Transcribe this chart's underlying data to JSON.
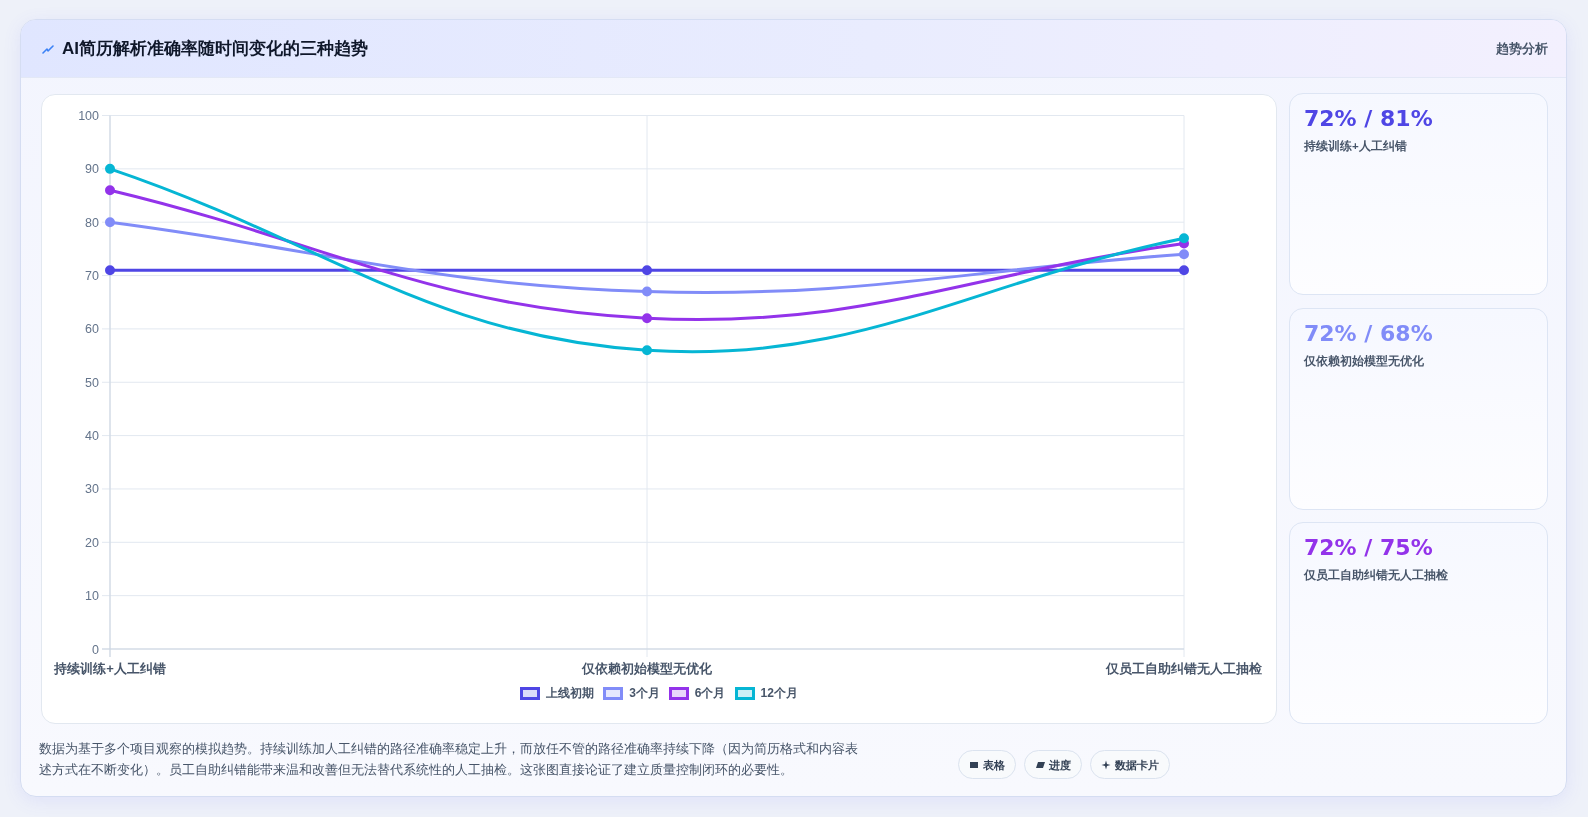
{
  "chart_data": [
    {
      "type": "line",
      "title": "AI简历解析准确率随时间变化的三种趋势",
      "categories": [
        "持续训练+人工纠错",
        "仅依赖初始模型无优化",
        "仅员工自助纠错无人工抽检"
      ],
      "series": [
        {
          "name": "上线初期",
          "color": "#4f46e5",
          "values": [
            71,
            71,
            71
          ]
        },
        {
          "name": "3个月",
          "color": "#818cf8",
          "values": [
            80,
            67,
            74
          ]
        },
        {
          "name": "6个月",
          "color": "#9333ea",
          "values": [
            86,
            62,
            76
          ]
        },
        {
          "name": "12个月",
          "color": "#06b6d4",
          "values": [
            90,
            56,
            77
          ]
        }
      ],
      "ylim": [
        0,
        100
      ],
      "yticks": [
        0,
        10,
        20,
        30,
        40,
        50,
        60,
        70,
        80,
        90,
        100
      ],
      "grid": true,
      "legend": "bottom",
      "marker": "circle",
      "line_style": "solid",
      "annotations": [
        "趋势分析",
        "数据为基于多个项目观察的模拟趋势。持续训练加人工纠错的路径准确率稳定上升，而放任不管的路径准确率持续下降（因为简历格式和内容表述方式在不断变化）。员工自助纠错能带来温和改善但无法替代系统性的人工抽检。这张图直接论证了建立质量控制闭环的必要性。",
        "表格",
        "进度",
        "数据卡片"
      ]
    },
    {
      "type": "other",
      "annotations": [
        "72% / 81%",
        "持续训练+人工纠错",
        "72% / 68%",
        "仅依赖初始模型无优化",
        "72% / 75%",
        "仅员工自助纠错无人工抽检"
      ]
    }
  ]
}
